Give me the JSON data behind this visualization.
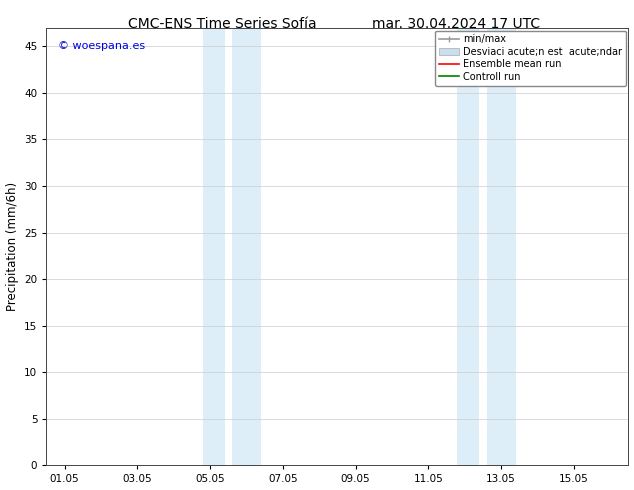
{
  "title_left": "CMC-ENS Time Series Sofía",
  "title_right": "mar. 30.04.2024 17 UTC",
  "ylabel": "Precipitation (mm/6h)",
  "ylim": [
    0,
    47
  ],
  "yticks": [
    0,
    5,
    10,
    15,
    20,
    25,
    30,
    35,
    40,
    45
  ],
  "xtick_labels": [
    "01.05",
    "03.05",
    "05.05",
    "07.05",
    "09.05",
    "11.05",
    "13.05",
    "15.05"
  ],
  "xtick_positions": [
    0,
    2,
    4,
    6,
    8,
    10,
    12,
    14
  ],
  "xlim": [
    -0.5,
    15.5
  ],
  "shaded_regions": [
    [
      3.8,
      4.4
    ],
    [
      4.6,
      5.4
    ],
    [
      10.8,
      11.4
    ],
    [
      11.6,
      12.4
    ]
  ],
  "shaded_color": "#ddeef8",
  "background_color": "#ffffff",
  "watermark_text": "© woespana.es",
  "watermark_color": "#0000dd",
  "legend_entries": [
    {
      "label": "min/max",
      "color": "#999999",
      "lw": 1.2
    },
    {
      "label": "Desviaci acute;n est  acute;ndar",
      "color": "#c8dff0"
    },
    {
      "label": "Ensemble mean run",
      "color": "#ff0000",
      "lw": 1.2
    },
    {
      "label": "Controll run",
      "color": "#008000",
      "lw": 1.2
    }
  ],
  "title_fontsize": 10,
  "tick_fontsize": 7.5,
  "ylabel_fontsize": 8.5,
  "legend_fontsize": 7
}
